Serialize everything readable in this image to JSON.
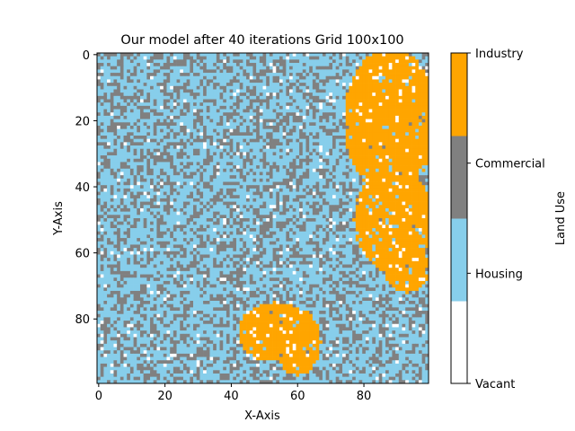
{
  "chart_data": {
    "type": "heatmap",
    "title": "Our model after 40 iterations Grid 100x100",
    "xlabel": "X-Axis",
    "ylabel": "Y-Axis",
    "grid_size": [
      100,
      100
    ],
    "xlim": [
      0,
      100
    ],
    "ylim": [
      100,
      0
    ],
    "x_ticks": [
      "0",
      "20",
      "40",
      "60",
      "80"
    ],
    "y_ticks": [
      "0",
      "20",
      "40",
      "60",
      "80"
    ],
    "colorbar": {
      "label": "Land Use",
      "categories": [
        {
          "name": "Vacant",
          "value": 0,
          "color": "#ffffff"
        },
        {
          "name": "Housing",
          "value": 1,
          "color": "#87ceeb"
        },
        {
          "name": "Commercial",
          "value": 2,
          "color": "#808080"
        },
        {
          "name": "Industry",
          "value": 3,
          "color": "#ffa500"
        }
      ]
    },
    "regions": [
      {
        "category": "Industry",
        "shape": "ellipse",
        "cx": 88,
        "cy": 20,
        "rx": 14,
        "ry": 22
      },
      {
        "category": "Industry",
        "shape": "ellipse",
        "cx": 89,
        "cy": 50,
        "rx": 12,
        "ry": 16
      },
      {
        "category": "Industry",
        "shape": "ellipse",
        "cx": 93,
        "cy": 65,
        "rx": 7,
        "ry": 7
      },
      {
        "category": "Industry",
        "shape": "ellipse",
        "cx": 53,
        "cy": 84,
        "rx": 11,
        "ry": 9
      },
      {
        "category": "Industry",
        "shape": "ellipse",
        "cx": 60,
        "cy": 87,
        "rx": 7,
        "ry": 10
      }
    ],
    "mix_outside_regions": {
      "Vacant": 0.03,
      "Housing": 0.6,
      "Commercial": 0.37
    },
    "mix_inside_regions": {
      "Vacant": 0.05,
      "Housing": 0.04,
      "Commercial": 0.01,
      "Industry": 0.9
    }
  }
}
